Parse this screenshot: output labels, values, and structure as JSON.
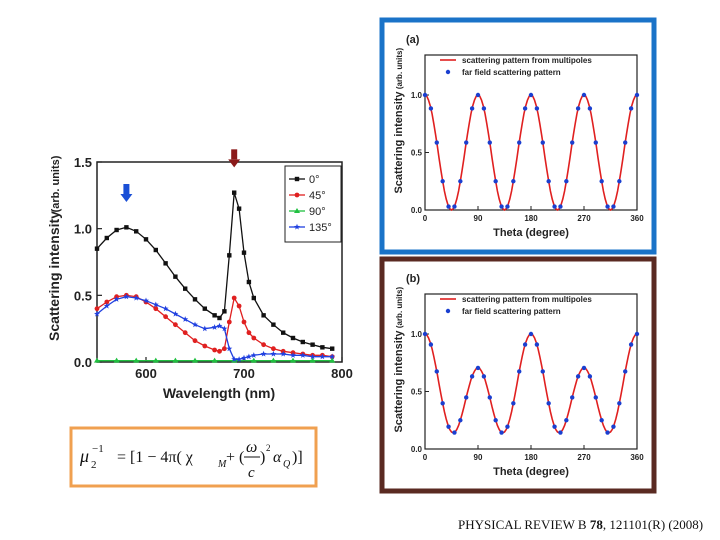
{
  "chart_data": [
    {
      "type": "line",
      "xlabel": "Wavelength (nm)",
      "ylabel": "Scattering intensity",
      "ylabel_unit": "(arb. units)",
      "xlim": [
        550,
        800
      ],
      "ylim": [
        0,
        1.5
      ],
      "xticks": [
        600,
        700,
        800
      ],
      "yticks": [
        0.0,
        0.5,
        1.0,
        1.5
      ],
      "ytick_labels": [
        "0.0",
        "0.5",
        "1.0",
        "1.5"
      ],
      "legend_position": "top-right",
      "series": [
        {
          "name": "0°",
          "color": "#111111",
          "marker": "square",
          "x": [
            550,
            560,
            570,
            580,
            590,
            600,
            610,
            620,
            630,
            640,
            650,
            660,
            670,
            675,
            680,
            685,
            690,
            695,
            700,
            705,
            710,
            720,
            730,
            740,
            750,
            760,
            770,
            780,
            790
          ],
          "y": [
            0.85,
            0.93,
            0.99,
            1.01,
            0.98,
            0.92,
            0.84,
            0.74,
            0.64,
            0.55,
            0.47,
            0.4,
            0.35,
            0.33,
            0.38,
            0.8,
            1.27,
            1.15,
            0.82,
            0.6,
            0.48,
            0.35,
            0.28,
            0.22,
            0.18,
            0.15,
            0.13,
            0.11,
            0.1
          ]
        },
        {
          "name": "45°",
          "color": "#e02020",
          "marker": "circle",
          "x": [
            550,
            560,
            570,
            580,
            590,
            600,
            610,
            620,
            630,
            640,
            650,
            660,
            670,
            675,
            680,
            685,
            690,
            695,
            700,
            705,
            710,
            720,
            730,
            740,
            750,
            760,
            770,
            780,
            790
          ],
          "y": [
            0.4,
            0.45,
            0.49,
            0.5,
            0.49,
            0.45,
            0.4,
            0.34,
            0.28,
            0.22,
            0.16,
            0.12,
            0.09,
            0.08,
            0.1,
            0.3,
            0.48,
            0.42,
            0.3,
            0.22,
            0.18,
            0.13,
            0.1,
            0.08,
            0.07,
            0.06,
            0.05,
            0.05,
            0.04
          ]
        },
        {
          "name": "90°",
          "color": "#20c040",
          "marker": "triangle",
          "x": [
            550,
            570,
            590,
            610,
            630,
            650,
            670,
            690,
            710,
            730,
            750,
            770,
            790
          ],
          "y": [
            0.01,
            0.01,
            0.01,
            0.01,
            0.01,
            0.01,
            0.01,
            0.01,
            0.01,
            0.01,
            0.01,
            0.01,
            0.01
          ]
        },
        {
          "name": "135°",
          "color": "#2040e0",
          "marker": "star",
          "x": [
            550,
            560,
            570,
            580,
            590,
            600,
            610,
            620,
            630,
            640,
            650,
            660,
            670,
            675,
            680,
            685,
            690,
            695,
            700,
            705,
            710,
            720,
            730,
            740,
            750,
            760,
            770,
            780,
            790
          ],
          "y": [
            0.36,
            0.42,
            0.47,
            0.49,
            0.48,
            0.46,
            0.43,
            0.4,
            0.36,
            0.32,
            0.28,
            0.25,
            0.26,
            0.27,
            0.25,
            0.1,
            0.02,
            0.02,
            0.03,
            0.04,
            0.05,
            0.06,
            0.06,
            0.06,
            0.05,
            0.05,
            0.04,
            0.04,
            0.04
          ]
        }
      ],
      "annotations": [
        {
          "type": "arrow",
          "x": 580,
          "color": "#1a4fd6"
        },
        {
          "type": "arrow",
          "x": 690,
          "color": "#8b1a1a"
        }
      ]
    },
    {
      "type": "line",
      "panel_label": "(a)",
      "xlabel": "Theta (degree)",
      "ylabel": "Scattering intensity",
      "ylabel_unit": "(arb. units)",
      "xlim": [
        0,
        360
      ],
      "ylim": [
        0,
        1.0
      ],
      "xticks": [
        0,
        90,
        180,
        270,
        360
      ],
      "yticks": [
        0.0,
        0.5,
        1.0
      ],
      "ytick_labels": [
        "0.0",
        "0.5",
        "1.0"
      ],
      "legend_position": "top-right",
      "series": [
        {
          "name": "scattering pattern from multipoles",
          "color": "#e02020",
          "style": "line",
          "formula": "cos2"
        },
        {
          "name": "far field scattering pattern",
          "color": "#1a3fd0",
          "style": "dots",
          "formula": "cos2"
        }
      ],
      "frame_color": "#1a73c8"
    },
    {
      "type": "line",
      "panel_label": "(b)",
      "xlabel": "Theta (degree)",
      "ylabel": "Scattering intensity",
      "ylabel_unit": "(arb. units)",
      "xlim": [
        0,
        360
      ],
      "ylim": [
        0,
        1.0
      ],
      "xticks": [
        0,
        90,
        180,
        270,
        360
      ],
      "yticks": [
        0.0,
        0.5,
        1.0
      ],
      "ytick_labels": [
        "0.0",
        "0.5",
        "1.0"
      ],
      "legend_position": "top-right",
      "series": [
        {
          "name": "scattering pattern from multipoles",
          "color": "#e02020",
          "style": "line",
          "formula": "b"
        },
        {
          "name": "far field scattering pattern",
          "color": "#1a3fd0",
          "style": "dots",
          "formula": "b"
        }
      ],
      "frame_color": "#5a2a22"
    }
  ],
  "formula": {
    "lhs": "μ",
    "lhs_sub": "2",
    "lhs_sup": "−1",
    "rhs_text": "= [1 − 4π( χ",
    "chi_sub": "M",
    "plus": " + (",
    "omega": "ω",
    "c": "c",
    "close_sq": ")",
    "sq": "2",
    "alpha": "α",
    "alpha_sub": "Q",
    "tail": ")]",
    "frame_color": "#f0a050"
  },
  "citation": {
    "journal": "PHYSICAL REVIEW B",
    "volume": "78",
    "pages": "121101(R) (2008)"
  }
}
